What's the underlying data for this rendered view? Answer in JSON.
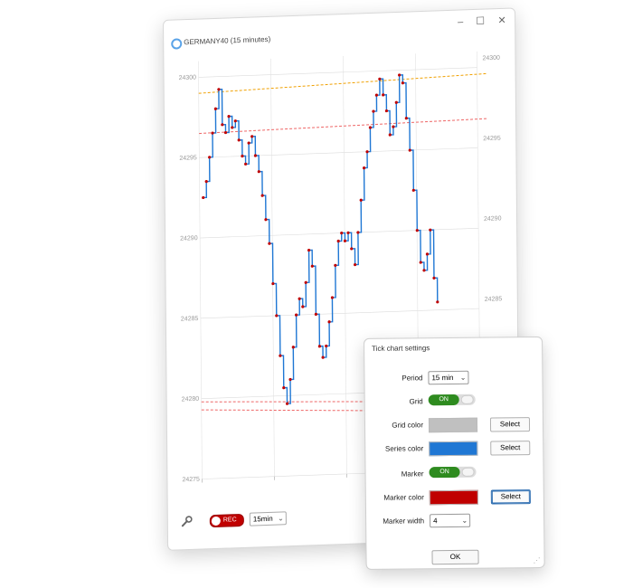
{
  "window": {
    "title": "GERMANY40 (15 minutes)",
    "minimize_glyph": "–",
    "maximize_glyph": "☐",
    "close_glyph": "✕"
  },
  "chart_data": {
    "type": "line",
    "y_ticks_left": [
      "24300",
      "24295",
      "24290",
      "24285",
      "24280",
      "24275"
    ],
    "y_ticks_right": [
      "24300",
      "24295",
      "24290",
      "24285"
    ],
    "ylim": [
      24275,
      24301
    ],
    "grid": true,
    "series_color": "#1f77d4",
    "marker_color": "#c00000",
    "values": [
      24292.5,
      24293.5,
      24295,
      24296.5,
      24298,
      24299.2,
      24297,
      24296.5,
      24297.5,
      24296.8,
      24297.2,
      24296,
      24295,
      24294.5,
      24295.8,
      24296.2,
      24295,
      24294,
      24292.5,
      24291,
      24289.5,
      24287,
      24285,
      24282.5,
      24280.5,
      24279.5,
      24281,
      24283,
      24285,
      24286,
      24285.5,
      24287,
      24289,
      24288,
      24285,
      24283,
      24282.3,
      24283,
      24284.5,
      24286,
      24288,
      24289.5,
      24290,
      24289.5,
      24290,
      24289,
      24288,
      24290,
      24292,
      24294,
      24295,
      24296.5,
      24297.5,
      24298.5,
      24299.5,
      24298.5,
      24297.5,
      24296,
      24296.5,
      24298,
      24299.7,
      24299.2,
      24297,
      24295,
      24292.5,
      24290,
      24288,
      24287.5,
      24288.5,
      24290,
      24287,
      24285.5
    ],
    "reference_lines": [
      {
        "color": "#f0a000",
        "y_left": 24299.0,
        "y_right": 24299.6
      },
      {
        "color": "#ee6666",
        "y_left": 24296.5,
        "y_right": 24296.8
      },
      {
        "color": "#ee6666",
        "y_left": 24279.8,
        "y_right": 24279.2
      },
      {
        "color": "#ee6666",
        "y_left": 24279.3,
        "y_right": 24278.6
      }
    ]
  },
  "bottombar": {
    "rec_label": "REC",
    "period_value": "15min",
    "dropdown_glyph": "⌄"
  },
  "dialog": {
    "title": "Tick chart settings",
    "period_label": "Period",
    "period_value": "15 min",
    "grid_label": "Grid",
    "grid_state": "ON",
    "grid_color_label": "Grid color",
    "grid_color": "#c0c0c0",
    "series_color_label": "Series color",
    "series_color": "#1f77d4",
    "marker_label": "Marker",
    "marker_state": "ON",
    "marker_color_label": "Marker color",
    "marker_color": "#c00000",
    "marker_width_label": "Marker width",
    "marker_width_value": "4",
    "select_label": "Select",
    "ok_label": "OK",
    "dropdown_glyph": "⌄"
  }
}
